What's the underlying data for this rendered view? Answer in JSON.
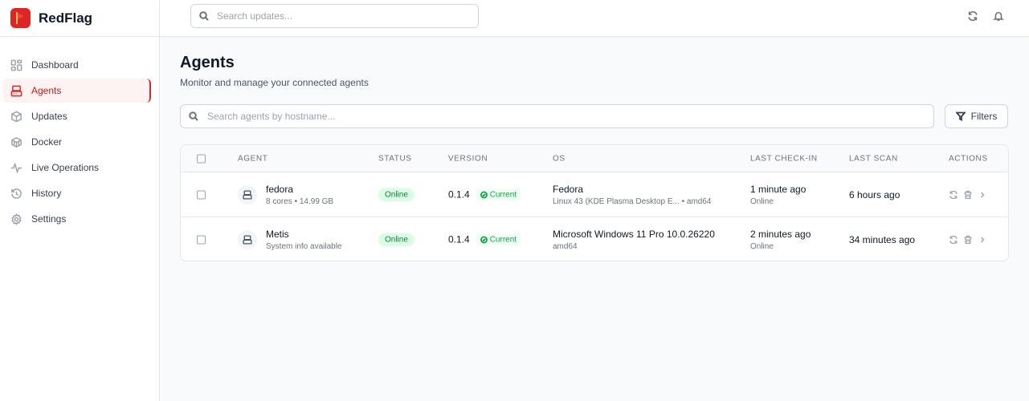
{
  "app": {
    "name": "RedFlag",
    "accent": "#dc2626"
  },
  "sidebar": {
    "items": [
      {
        "label": "Dashboard",
        "icon": "dashboard-icon"
      },
      {
        "label": "Agents",
        "icon": "server-icon",
        "active": true
      },
      {
        "label": "Updates",
        "icon": "package-icon"
      },
      {
        "label": "Docker",
        "icon": "container-icon"
      },
      {
        "label": "Live Operations",
        "icon": "activity-icon"
      },
      {
        "label": "History",
        "icon": "history-icon"
      },
      {
        "label": "Settings",
        "icon": "gear-icon"
      }
    ]
  },
  "topbar": {
    "search_placeholder": "Search updates..."
  },
  "page": {
    "title": "Agents",
    "subtitle": "Monitor and manage your connected agents",
    "search_placeholder": "Search agents by hostname...",
    "filters_label": "Filters"
  },
  "table": {
    "headers": [
      "AGENT",
      "STATUS",
      "VERSION",
      "OS",
      "LAST CHECK-IN",
      "LAST SCAN",
      "ACTIONS"
    ],
    "rows": [
      {
        "name": "fedora",
        "detail": "8 cores • 14.99 GB",
        "status": "Online",
        "version": "0.1.4",
        "version_badge": "Current",
        "os": "Fedora",
        "os_detail": "Linux 43 (KDE Plasma Desktop E... • amd64",
        "checkin": "1 minute ago",
        "checkin_status": "Online",
        "scan": "6 hours ago"
      },
      {
        "name": "Metis",
        "detail": "System info available",
        "status": "Online",
        "version": "0.1.4",
        "version_badge": "Current",
        "os": "Microsoft Windows 11 Pro 10.0.26220",
        "os_detail": "amd64",
        "checkin": "2 minutes ago",
        "checkin_status": "Online",
        "scan": "34 minutes ago"
      }
    ]
  }
}
